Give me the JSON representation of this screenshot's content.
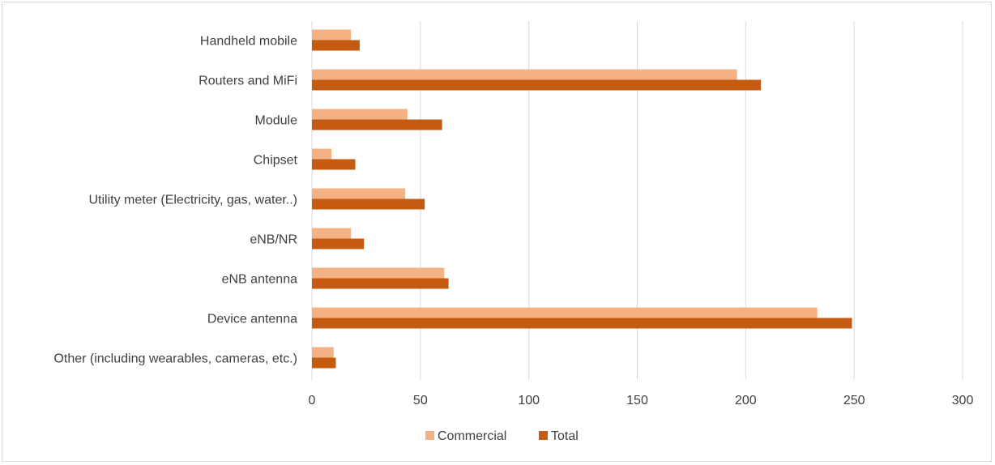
{
  "chart_data": {
    "type": "bar",
    "orientation": "horizontal",
    "title": "",
    "xlabel": "",
    "ylabel": "",
    "categories": [
      "Handheld mobile",
      "Routers and MiFi",
      "Module",
      "Chipset",
      "Utility meter (Electricity, gas, water..)",
      "eNB/NR",
      "eNB antenna",
      "Device antenna",
      "Other (including wearables, cameras, etc.)"
    ],
    "series": [
      {
        "name": "Commercial",
        "color": "#f4b183",
        "values": [
          18,
          196,
          44,
          9,
          43,
          18,
          61,
          233,
          10
        ]
      },
      {
        "name": "Total",
        "color": "#c55a11",
        "values": [
          22,
          207,
          60,
          20,
          52,
          24,
          63,
          249,
          11
        ]
      }
    ],
    "xlim": [
      0,
      300
    ],
    "xticks": [
      "0",
      "50",
      "100",
      "150",
      "200",
      "250",
      "300"
    ],
    "grid": "vertical",
    "legend_position": "bottom"
  }
}
